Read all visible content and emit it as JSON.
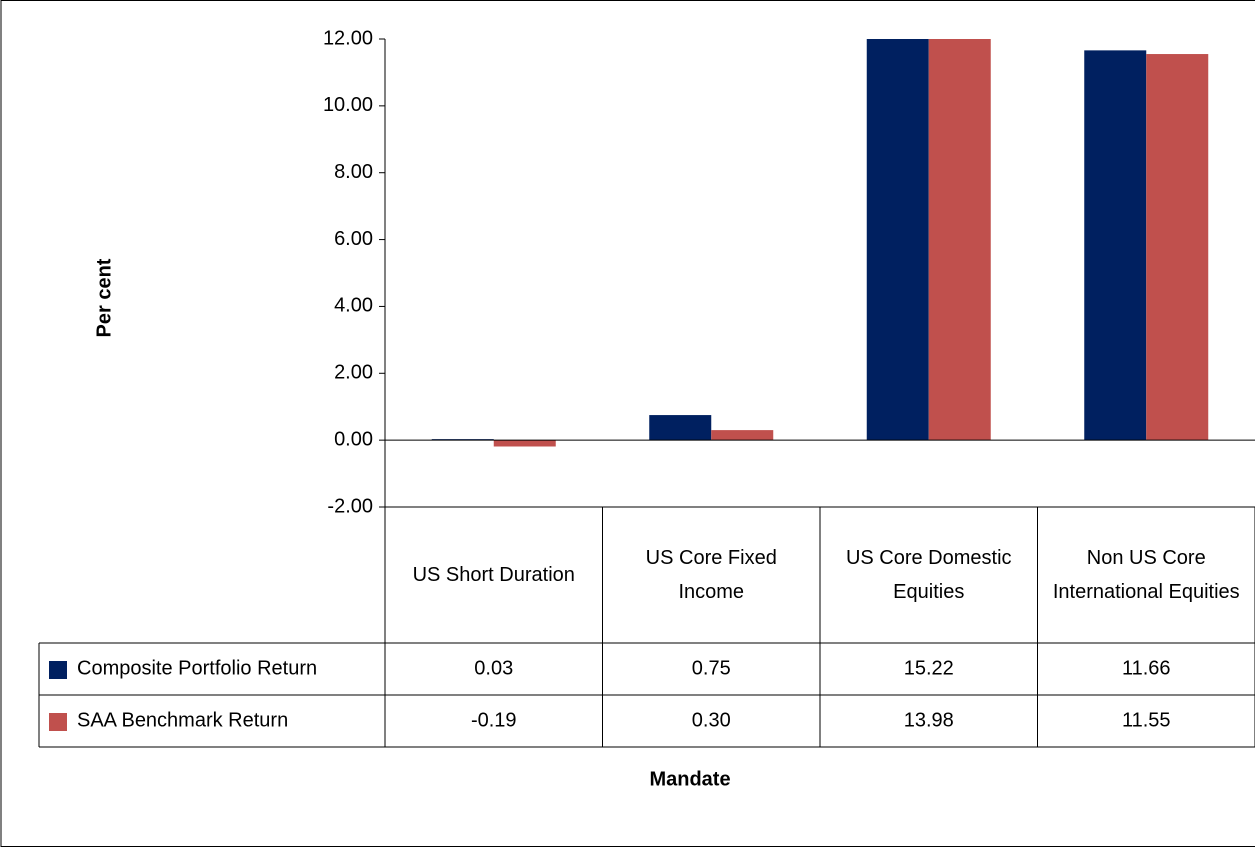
{
  "chart_data": {
    "type": "bar",
    "y_label": "Per cent",
    "x_label": "Mandate",
    "categories": [
      "US Short Duration",
      "US Core Fixed Income",
      "US Core Domestic Equities",
      "Non US Core International Equities"
    ],
    "series": [
      {
        "name": "Composite Portfolio Return",
        "color": "#002060",
        "values": [
          0.03,
          0.75,
          15.22,
          11.66
        ],
        "value_labels": [
          "0.03",
          "0.75",
          "15.22",
          "11.66"
        ]
      },
      {
        "name": "SAA Benchmark Return",
        "color": "#c0504d",
        "values": [
          -0.19,
          0.3,
          13.98,
          11.55
        ],
        "value_labels": [
          "-0.19",
          "0.30",
          "13.98",
          "11.55"
        ]
      }
    ],
    "ylim": [
      -2,
      12
    ],
    "yticks": [
      {
        "value": -2,
        "label": "-2.00"
      },
      {
        "value": 0,
        "label": "0.00"
      },
      {
        "value": 2,
        "label": "2.00"
      },
      {
        "value": 4,
        "label": "4.00"
      },
      {
        "value": 6,
        "label": "6.00"
      },
      {
        "value": 8,
        "label": "8.00"
      },
      {
        "value": 10,
        "label": "10.00"
      },
      {
        "value": 12,
        "label": "12.00"
      }
    ],
    "grid": false,
    "legend": "table"
  }
}
